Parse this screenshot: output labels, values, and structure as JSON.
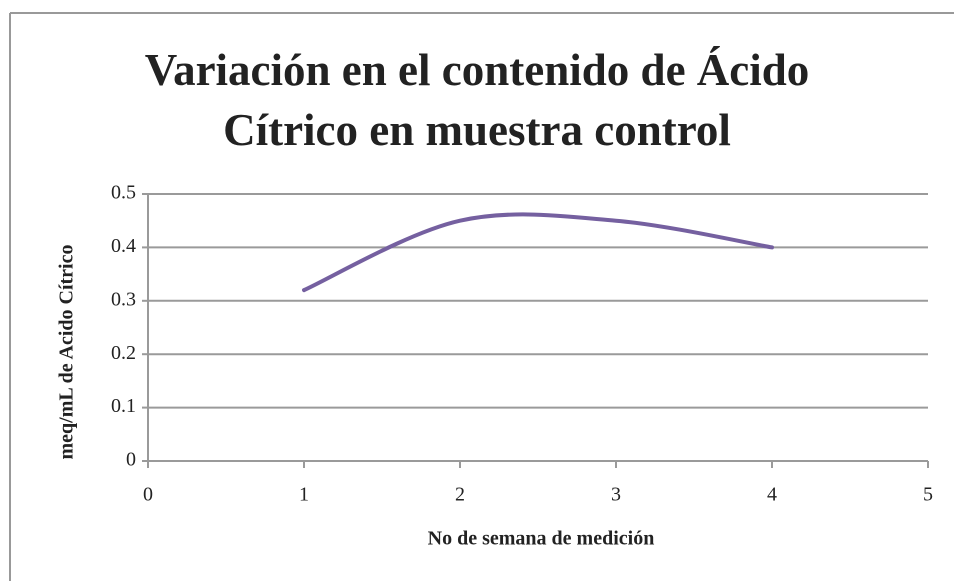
{
  "chart_data": {
    "type": "line",
    "title": "Variación en el contenido de Ácido Cítrico en muestra control",
    "x_label": "No de semana de medición",
    "y_label": "meq/mL de Acido Cítrico",
    "x": [
      1,
      2,
      3,
      4
    ],
    "values": [
      0.32,
      0.45,
      0.45,
      0.4
    ],
    "color": "#7560a0",
    "smooth": true,
    "xlim": [
      0,
      5
    ],
    "xticks": [
      0,
      1,
      2,
      3,
      4,
      5
    ],
    "ylim": [
      0,
      0.5
    ],
    "yticks": [
      0,
      0.1,
      0.2,
      0.3,
      0.4,
      0.5
    ],
    "grid": true
  }
}
